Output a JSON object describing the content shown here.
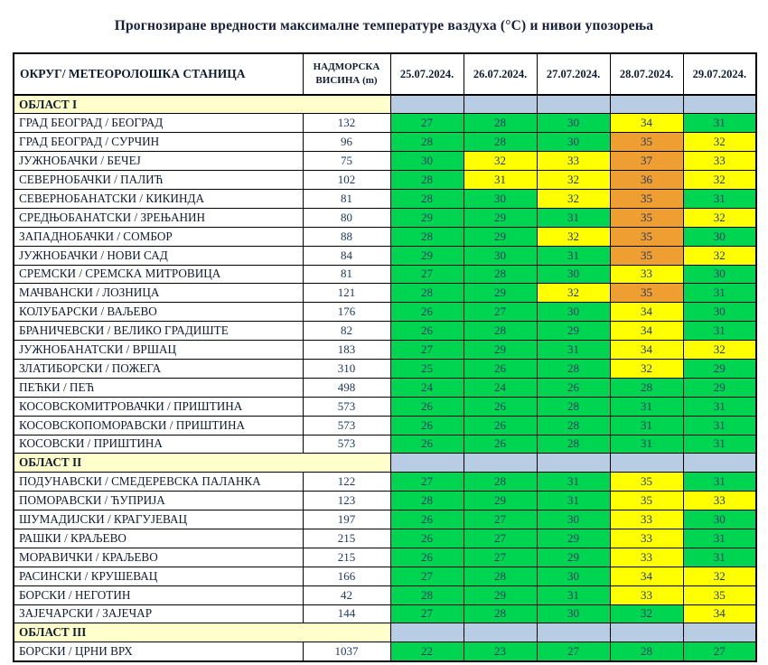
{
  "page": {
    "title": "Прогнозиране вредности максималне температуре ваздуха (°C) и нивои упозорења"
  },
  "columns": {
    "station": "ОКРУГ/ МЕТЕОРОЛОШКА СТАНИЦА",
    "altitude_line1": "НАДМОРСКА",
    "altitude_line2": "ВИСИНА (m)",
    "dates": [
      "25.07.2024.",
      "26.07.2024.",
      "27.07.2024.",
      "28.07.2024.",
      "29.07.2024."
    ]
  },
  "colors": {
    "warning_green": "#00d551",
    "warning_yellow": "#ffff00",
    "warning_orange": "#ef9e32",
    "section_label_bg": "#ffffcc",
    "section_cells_bg": "#b8cce4",
    "value_text": "#1f3864",
    "border": "#000000"
  },
  "sections": [
    {
      "label": "ОБЛАСТ I",
      "rows": [
        {
          "station": "ГРАД БЕОГРАД / БЕОГРАД",
          "altitude": "132",
          "temps": [
            27,
            28,
            30,
            34,
            31
          ],
          "levels": [
            "g",
            "g",
            "g",
            "y",
            "g"
          ]
        },
        {
          "station": "ГРАД БЕОГРАД / СУРЧИН",
          "altitude": "96",
          "temps": [
            28,
            28,
            30,
            35,
            32
          ],
          "levels": [
            "g",
            "g",
            "g",
            "o",
            "y"
          ]
        },
        {
          "station": "ЈУЖНОБАЧКИ / БЕЧЕЈ",
          "altitude": "75",
          "temps": [
            30,
            32,
            33,
            37,
            33
          ],
          "levels": [
            "g",
            "y",
            "y",
            "o",
            "y"
          ]
        },
        {
          "station": "СЕВЕРНОБАЧКИ / ПАЛИЋ",
          "altitude": "102",
          "temps": [
            28,
            31,
            32,
            36,
            32
          ],
          "levels": [
            "g",
            "y",
            "y",
            "o",
            "y"
          ]
        },
        {
          "station": "СЕВЕРНОБАНАТСКИ / КИКИНДА",
          "altitude": "81",
          "temps": [
            28,
            30,
            32,
            35,
            31
          ],
          "levels": [
            "g",
            "g",
            "y",
            "o",
            "g"
          ]
        },
        {
          "station": "СРЕДЊОБАНАТСКИ / ЗРЕЊАНИН",
          "altitude": "80",
          "temps": [
            29,
            29,
            31,
            35,
            32
          ],
          "levels": [
            "g",
            "g",
            "g",
            "o",
            "y"
          ]
        },
        {
          "station": "ЗАПАДНОБАЧКИ / СОМБОР",
          "altitude": "88",
          "temps": [
            28,
            29,
            32,
            35,
            30
          ],
          "levels": [
            "g",
            "g",
            "y",
            "o",
            "g"
          ]
        },
        {
          "station": "ЈУЖНОБАЧКИ / НОВИ САД",
          "altitude": "84",
          "temps": [
            29,
            30,
            31,
            35,
            32
          ],
          "levels": [
            "g",
            "g",
            "g",
            "o",
            "y"
          ]
        },
        {
          "station": "СРЕМСКИ / СРЕМСКА МИТРОВИЦА",
          "altitude": "81",
          "temps": [
            27,
            28,
            30,
            33,
            30
          ],
          "levels": [
            "g",
            "g",
            "g",
            "y",
            "g"
          ]
        },
        {
          "station": "МАЧВАНСКИ / ЛОЗНИЦА",
          "altitude": "121",
          "temps": [
            28,
            29,
            32,
            35,
            31
          ],
          "levels": [
            "g",
            "g",
            "y",
            "o",
            "g"
          ]
        },
        {
          "station": "КОЛУБАРСКИ / ВАЉЕВО",
          "altitude": "176",
          "temps": [
            26,
            27,
            30,
            34,
            30
          ],
          "levels": [
            "g",
            "g",
            "g",
            "y",
            "g"
          ]
        },
        {
          "station": "БРАНИЧЕВСКИ / ВЕЛИКО ГРАДИШТЕ",
          "altitude": "82",
          "temps": [
            26,
            28,
            29,
            34,
            31
          ],
          "levels": [
            "g",
            "g",
            "g",
            "y",
            "g"
          ]
        },
        {
          "station": "ЈУЖНОБАНАТСКИ / ВРШАЦ",
          "altitude": "183",
          "temps": [
            27,
            29,
            31,
            34,
            32
          ],
          "levels": [
            "g",
            "g",
            "g",
            "y",
            "y"
          ]
        },
        {
          "station": "ЗЛАТИБОРСКИ / ПОЖЕГА",
          "altitude": "310",
          "temps": [
            25,
            26,
            28,
            32,
            29
          ],
          "levels": [
            "g",
            "g",
            "g",
            "y",
            "g"
          ]
        },
        {
          "station": "ПЕЋКИ / ПЕЋ",
          "altitude": "498",
          "temps": [
            24,
            24,
            26,
            28,
            29
          ],
          "levels": [
            "g",
            "g",
            "g",
            "g",
            "g"
          ]
        },
        {
          "station": "КОСОВСКОМИТРОВАЧКИ / ПРИШТИНА",
          "altitude": "573",
          "temps": [
            26,
            26,
            28,
            31,
            31
          ],
          "levels": [
            "g",
            "g",
            "g",
            "g",
            "g"
          ]
        },
        {
          "station": "КОСОВСКОПОМОРАВСКИ / ПРИШТИНА",
          "altitude": "573",
          "temps": [
            26,
            26,
            28,
            31,
            31
          ],
          "levels": [
            "g",
            "g",
            "g",
            "g",
            "g"
          ]
        },
        {
          "station": "КОСОВСКИ / ПРИШТИНА",
          "altitude": "573",
          "temps": [
            26,
            26,
            28,
            31,
            31
          ],
          "levels": [
            "g",
            "g",
            "g",
            "g",
            "g"
          ]
        }
      ]
    },
    {
      "label": "ОБЛАСТ II",
      "rows": [
        {
          "station": "ПОДУНАВСКИ / СМЕДЕРЕВСКА ПАЛАНКА",
          "altitude": "122",
          "temps": [
            27,
            28,
            31,
            35,
            31
          ],
          "levels": [
            "g",
            "g",
            "g",
            "y",
            "g"
          ]
        },
        {
          "station": "ПОМОРАВСКИ / ЋУПРИЈА",
          "altitude": "123",
          "temps": [
            28,
            29,
            31,
            35,
            33
          ],
          "levels": [
            "g",
            "g",
            "g",
            "y",
            "y"
          ]
        },
        {
          "station": "ШУМАДИЈСКИ / КРАГУЈЕВАЦ",
          "altitude": "197",
          "temps": [
            26,
            27,
            30,
            33,
            30
          ],
          "levels": [
            "g",
            "g",
            "g",
            "y",
            "g"
          ]
        },
        {
          "station": "РАШКИ / КРАЉЕВО",
          "altitude": "215",
          "temps": [
            26,
            27,
            29,
            33,
            31
          ],
          "levels": [
            "g",
            "g",
            "g",
            "y",
            "g"
          ]
        },
        {
          "station": "МОРАВИЧКИ / КРАЉЕВО",
          "altitude": "215",
          "temps": [
            26,
            27,
            29,
            33,
            31
          ],
          "levels": [
            "g",
            "g",
            "g",
            "y",
            "g"
          ]
        },
        {
          "station": "РАСИНСКИ / КРУШЕВАЦ",
          "altitude": "166",
          "temps": [
            27,
            28,
            30,
            34,
            32
          ],
          "levels": [
            "g",
            "g",
            "g",
            "y",
            "y"
          ]
        },
        {
          "station": "БОРСКИ / НЕГОТИН",
          "altitude": "42",
          "temps": [
            28,
            29,
            31,
            33,
            35
          ],
          "levels": [
            "g",
            "g",
            "g",
            "y",
            "y"
          ]
        },
        {
          "station": "ЗАЈЕЧАРСКИ / ЗАЈЕЧАР",
          "altitude": "144",
          "temps": [
            27,
            28,
            30,
            32,
            34
          ],
          "levels": [
            "g",
            "g",
            "g",
            "g",
            "y"
          ]
        }
      ]
    },
    {
      "label": "ОБЛАСТ III",
      "rows": [
        {
          "station": "БОРСКИ / ЦРНИ ВРХ",
          "altitude": "1037",
          "temps": [
            22,
            23,
            27,
            28,
            27
          ],
          "levels": [
            "g",
            "g",
            "g",
            "g",
            "g"
          ]
        }
      ]
    }
  ]
}
